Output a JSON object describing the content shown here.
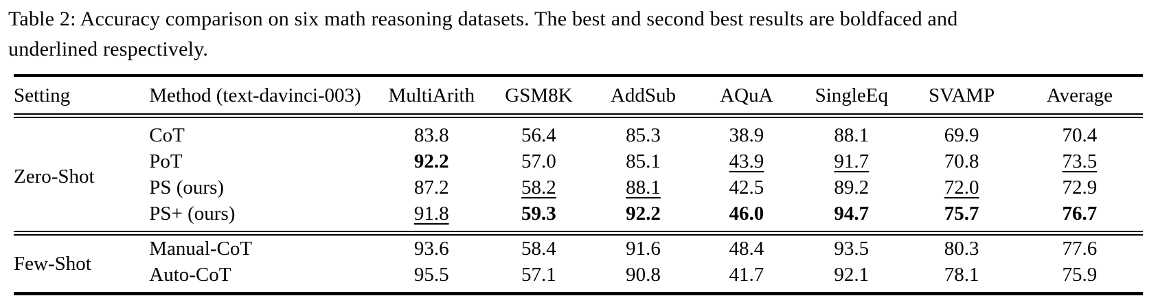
{
  "colors": {
    "text": "#000000",
    "background": "#ffffff"
  },
  "caption": {
    "line1": "Table 2: Accuracy comparison on six math reasoning datasets. The best and second best results are boldfaced and",
    "line2": "underlined respectively.",
    "full_text": "Table 2: Accuracy comparison on six math reasoning datasets. The best and second best results are boldfaced and underlined respectively."
  },
  "table": {
    "columns": [
      "Setting",
      "Method (text-davinci-003)",
      "MultiArith",
      "GSM8K",
      "AddSub",
      "AQuA",
      "SingleEq",
      "SVAMP",
      "Average"
    ],
    "groups": [
      {
        "setting": "Zero-Shot",
        "rows": [
          {
            "method": "CoT",
            "values": [
              "83.8",
              "56.4",
              "85.3",
              "38.9",
              "88.1",
              "69.9",
              "70.4"
            ],
            "styles": [
              "",
              "",
              "",
              "",
              "",
              "",
              ""
            ]
          },
          {
            "method": "PoT",
            "values": [
              "92.2",
              "57.0",
              "85.1",
              "43.9",
              "91.7",
              "70.8",
              "73.5"
            ],
            "styles": [
              "bold",
              "",
              "",
              "underline",
              "underline",
              "",
              "underline"
            ]
          },
          {
            "method": "PS (ours)",
            "values": [
              "87.2",
              "58.2",
              "88.1",
              "42.5",
              "89.2",
              "72.0",
              "72.9"
            ],
            "styles": [
              "",
              "underline",
              "underline",
              "",
              "",
              "underline",
              ""
            ]
          },
          {
            "method": "PS+ (ours)",
            "values": [
              "91.8",
              "59.3",
              "92.2",
              "46.0",
              "94.7",
              "75.7",
              "76.7"
            ],
            "styles": [
              "underline",
              "bold",
              "bold",
              "bold",
              "bold",
              "bold",
              "bold"
            ]
          }
        ]
      },
      {
        "setting": "Few-Shot",
        "rows": [
          {
            "method": "Manual-CoT",
            "values": [
              "93.6",
              "58.4",
              "91.6",
              "48.4",
              "93.5",
              "80.3",
              "77.6"
            ],
            "styles": [
              "",
              "",
              "",
              "",
              "",
              "",
              ""
            ]
          },
          {
            "method": "Auto-CoT",
            "values": [
              "95.5",
              "57.1",
              "90.8",
              "41.7",
              "92.1",
              "78.1",
              "75.9"
            ],
            "styles": [
              "",
              "",
              "",
              "",
              "",
              "",
              ""
            ]
          }
        ]
      }
    ]
  },
  "chart_data": {
    "type": "table",
    "title": "Accuracy comparison on six math reasoning datasets",
    "categories": [
      "MultiArith",
      "GSM8K",
      "AddSub",
      "AQuA",
      "SingleEq",
      "SVAMP",
      "Average"
    ],
    "series": [
      {
        "name": "Zero-Shot CoT",
        "values": [
          83.8,
          56.4,
          85.3,
          38.9,
          88.1,
          69.9,
          70.4
        ]
      },
      {
        "name": "Zero-Shot PoT",
        "values": [
          92.2,
          57.0,
          85.1,
          43.9,
          91.7,
          70.8,
          73.5
        ]
      },
      {
        "name": "Zero-Shot PS (ours)",
        "values": [
          87.2,
          58.2,
          88.1,
          42.5,
          89.2,
          72.0,
          72.9
        ]
      },
      {
        "name": "Zero-Shot PS+ (ours)",
        "values": [
          91.8,
          59.3,
          92.2,
          46.0,
          94.7,
          75.7,
          76.7
        ]
      },
      {
        "name": "Few-Shot Manual-CoT",
        "values": [
          93.6,
          58.4,
          91.6,
          48.4,
          93.5,
          80.3,
          77.6
        ]
      },
      {
        "name": "Few-Shot Auto-CoT",
        "values": [
          95.5,
          57.1,
          90.8,
          41.7,
          92.1,
          78.1,
          75.9
        ]
      }
    ]
  }
}
